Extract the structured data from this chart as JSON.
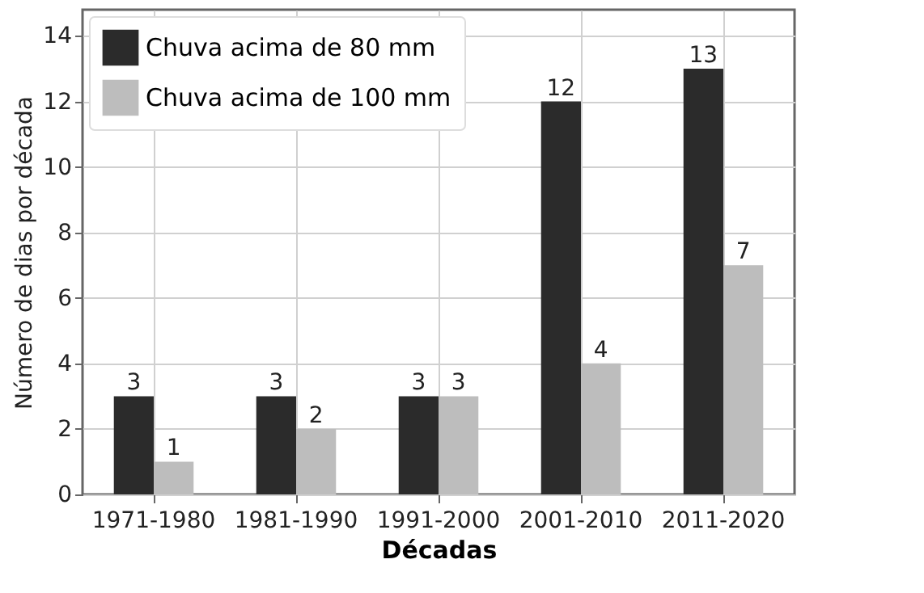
{
  "chart_data": {
    "type": "bar",
    "xlabel": "Décadas",
    "ylabel": "Número de dias por década",
    "categories": [
      "1971-1980",
      "1981-1990",
      "1991-2000",
      "2001-2010",
      "2011-2020"
    ],
    "series": [
      {
        "name": "Chuva acima de 80 mm",
        "color": "#2b2b2b",
        "values": [
          3,
          3,
          3,
          12,
          13
        ]
      },
      {
        "name": "Chuva acima de 100 mm",
        "color": "#bdbdbd",
        "values": [
          1,
          2,
          3,
          4,
          7
        ]
      }
    ],
    "ylim": [
      0,
      14.8
    ],
    "yticks": [
      0,
      2,
      4,
      6,
      8,
      10,
      12,
      14
    ],
    "grid": true,
    "legend": "top left",
    "data_labels": true
  }
}
